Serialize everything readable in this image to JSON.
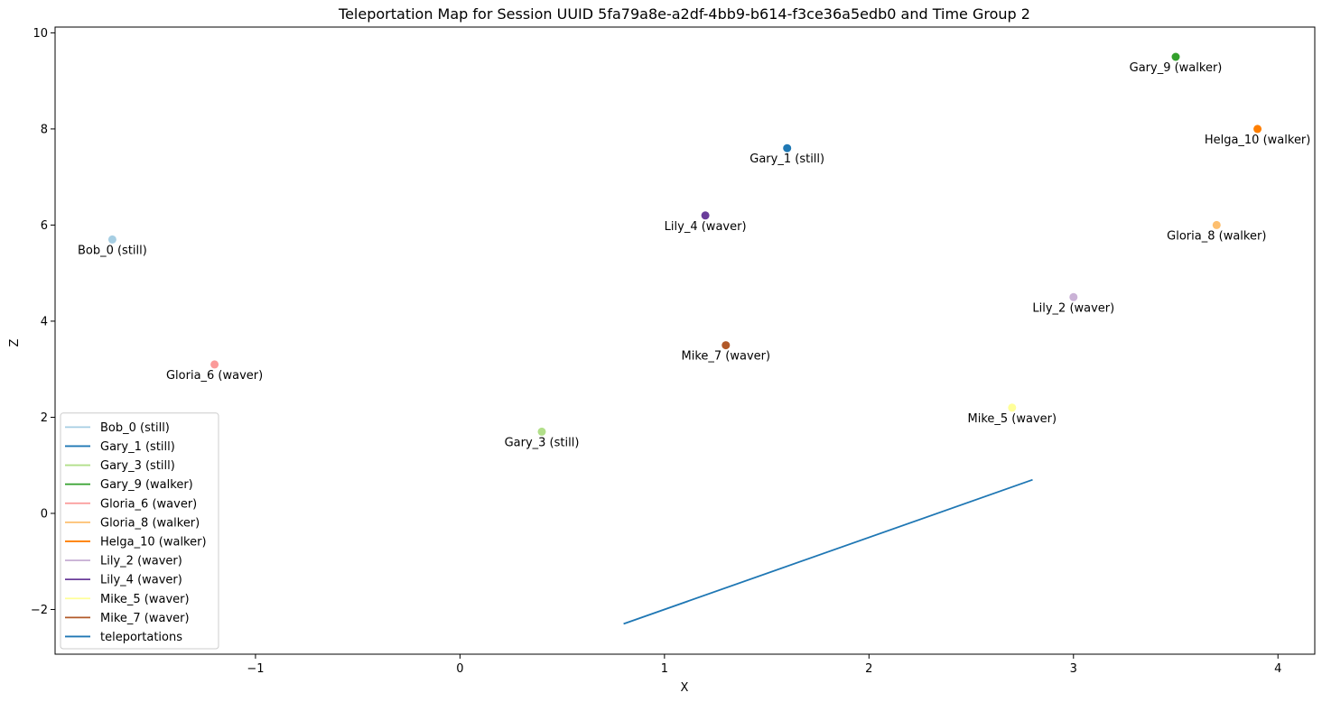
{
  "chart_data": {
    "type": "scatter",
    "title": "Teleportation Map for Session UUID 5fa79a8e-a2df-4bb9-b614-f3ce36a5edb0 and Time Group 2",
    "xlabel": "X",
    "ylabel": "Z",
    "xlim": [
      -1.98,
      4.18
    ],
    "ylim": [
      -2.93,
      10.12
    ],
    "xticks": [
      -1,
      0,
      1,
      2,
      3,
      4
    ],
    "yticks": [
      -2,
      0,
      2,
      4,
      6,
      8,
      10
    ],
    "xtick_labels": [
      "−1",
      "0",
      "1",
      "2",
      "3",
      "4"
    ],
    "ytick_labels": [
      "−2",
      "0",
      "2",
      "4",
      "6",
      "8",
      "10"
    ],
    "grid": false,
    "legend_position": "lower-left",
    "series": [
      {
        "name": "Bob_0 (still)",
        "color": "#a6cee3",
        "x": [
          -1.7
        ],
        "y": [
          5.7
        ],
        "label": "Bob_0 (still)"
      },
      {
        "name": "Gary_1 (still)",
        "color": "#1f78b4",
        "x": [
          1.6
        ],
        "y": [
          7.6
        ],
        "label": "Gary_1 (still)"
      },
      {
        "name": "Gary_3 (still)",
        "color": "#b2df8a",
        "x": [
          0.4
        ],
        "y": [
          1.7
        ],
        "label": "Gary_3 (still)"
      },
      {
        "name": "Gary_9 (walker)",
        "color": "#33a02c",
        "x": [
          3.5
        ],
        "y": [
          9.5
        ],
        "label": "Gary_9 (walker)"
      },
      {
        "name": "Gloria_6 (waver)",
        "color": "#fb9a99",
        "x": [
          -1.2
        ],
        "y": [
          3.1
        ],
        "label": "Gloria_6 (waver)"
      },
      {
        "name": "Gloria_8 (walker)",
        "color": "#fdbf6f",
        "x": [
          3.7
        ],
        "y": [
          6.0
        ],
        "label": "Gloria_8 (walker)"
      },
      {
        "name": "Helga_10 (walker)",
        "color": "#ff7f00",
        "x": [
          3.9
        ],
        "y": [
          8.0
        ],
        "label": "Helga_10 (walker)"
      },
      {
        "name": "Lily_2 (waver)",
        "color": "#cab2d6",
        "x": [
          3.0
        ],
        "y": [
          4.5
        ],
        "label": "Lily_2 (waver)"
      },
      {
        "name": "Lily_4 (waver)",
        "color": "#6a3d9a",
        "x": [
          1.2
        ],
        "y": [
          6.2
        ],
        "label": "Lily_4 (waver)"
      },
      {
        "name": "Mike_5 (waver)",
        "color": "#ffff99",
        "x": [
          2.7
        ],
        "y": [
          2.2
        ],
        "label": "Mike_5 (waver)"
      },
      {
        "name": "Mike_7 (waver)",
        "color": "#b15928",
        "x": [
          1.3
        ],
        "y": [
          3.5
        ],
        "label": "Mike_7 (waver)"
      }
    ],
    "lines": [
      {
        "name": "teleportations",
        "color": "#1f77b4",
        "x": [
          0.8,
          2.8
        ],
        "y": [
          -2.3,
          0.7
        ]
      }
    ]
  }
}
